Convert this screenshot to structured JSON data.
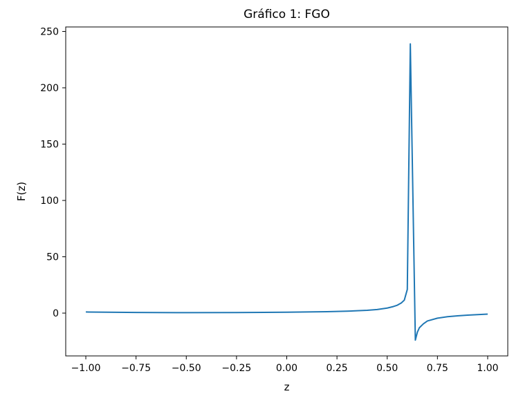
{
  "chart_data": {
    "type": "line",
    "title": "Gráfico 1: FGO",
    "xlabel": "z",
    "ylabel": "F(z)",
    "xlim": [
      -1.1,
      1.1
    ],
    "ylim": [
      -38,
      254
    ],
    "x_ticks": [
      -1.0,
      -0.75,
      -0.5,
      -0.25,
      0.0,
      0.25,
      0.5,
      0.75,
      1.0
    ],
    "x_tick_labels": [
      "−1.00",
      "−0.75",
      "−0.50",
      "−0.25",
      "0.00",
      "0.25",
      "0.50",
      "0.75",
      "1.00"
    ],
    "y_ticks": [
      0,
      50,
      100,
      150,
      200,
      250
    ],
    "y_tick_labels": [
      "0",
      "50",
      "100",
      "150",
      "200",
      "250"
    ],
    "grid": false,
    "series": [
      {
        "color": "#1f77b4",
        "x": [
          -1.0,
          -0.75,
          -0.5,
          -0.25,
          0.0,
          0.1,
          0.2,
          0.3,
          0.35,
          0.4,
          0.45,
          0.5,
          0.53,
          0.55,
          0.57,
          0.585,
          0.6,
          0.615,
          0.64,
          0.65,
          0.66,
          0.68,
          0.7,
          0.75,
          0.8,
          0.85,
          0.9,
          1.0
        ],
        "y": [
          1.0,
          0.6,
          0.4,
          0.5,
          0.8,
          1.0,
          1.3,
          1.7,
          2.1,
          2.5,
          3.2,
          4.5,
          5.8,
          7.0,
          9.0,
          11.5,
          21.0,
          239.0,
          -24.0,
          -17.0,
          -13.0,
          -9.5,
          -7.0,
          -4.5,
          -3.2,
          -2.4,
          -1.8,
          -0.9
        ]
      }
    ]
  }
}
